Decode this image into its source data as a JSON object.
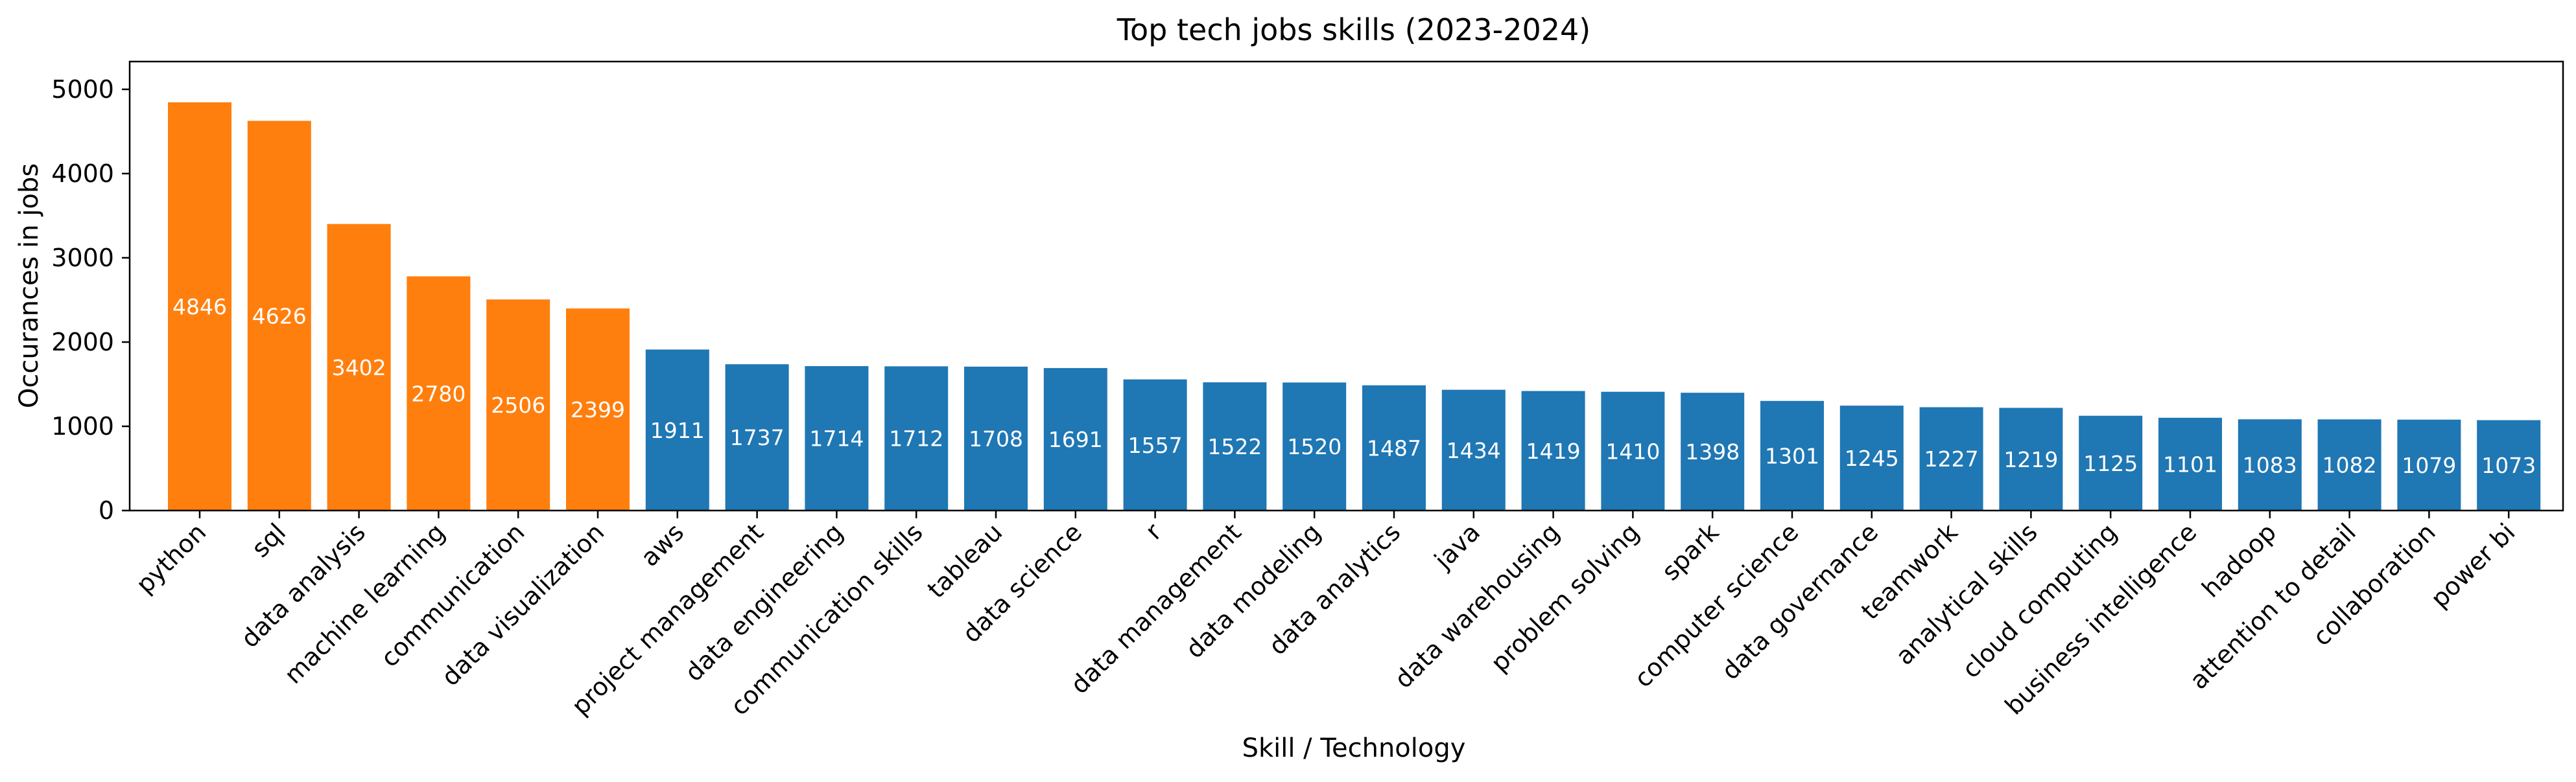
{
  "chart_data": {
    "type": "bar",
    "title": "Top tech jobs skills (2023-2024)",
    "xlabel": "Skill / Technology",
    "ylabel": "Occurances in jobs",
    "ylim": [
      0,
      5330
    ],
    "yticks": [
      0,
      1000,
      2000,
      3000,
      4000,
      5000
    ],
    "grid": false,
    "legend": "none",
    "highlight_count": 6,
    "colors": {
      "highlight": "#ff7f0e",
      "default": "#1f77b4"
    },
    "categories": [
      "python",
      "sql",
      "data analysis",
      "machine learning",
      "communication",
      "data visualization",
      "aws",
      "project management",
      "data engineering",
      "communication skills",
      "tableau",
      "data science",
      "r",
      "data management",
      "data modeling",
      "data analytics",
      "java",
      "data warehousing",
      "problem solving",
      "spark",
      "computer science",
      "data governance",
      "teamwork",
      "analytical skills",
      "cloud computing",
      "business intelligence",
      "hadoop",
      "attention to detail",
      "collaboration",
      "power bi"
    ],
    "values": [
      4846,
      4626,
      3402,
      2780,
      2506,
      2399,
      1911,
      1737,
      1714,
      1712,
      1708,
      1691,
      1557,
      1522,
      1520,
      1487,
      1434,
      1419,
      1410,
      1398,
      1301,
      1245,
      1227,
      1219,
      1125,
      1101,
      1083,
      1082,
      1079,
      1073
    ]
  }
}
